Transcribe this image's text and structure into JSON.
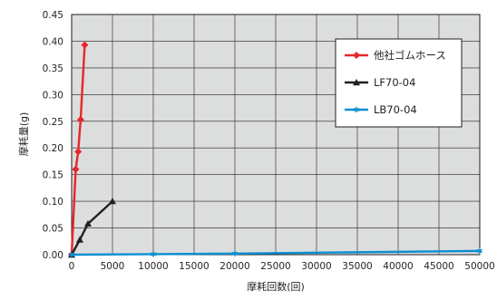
{
  "chart_data": {
    "type": "line",
    "title": "",
    "xlabel": "摩耗回数(回)",
    "ylabel": "摩耗量(g)",
    "xlim": [
      0,
      50000
    ],
    "ylim": [
      0,
      0.45
    ],
    "x_ticks": [
      "0",
      "5000",
      "10000",
      "15000",
      "20000",
      "25000",
      "30000",
      "35000",
      "40000",
      "45000",
      "50000"
    ],
    "y_ticks": [
      "0.00",
      "0.05",
      "0.10",
      "0.15",
      "0.20",
      "0.25",
      "0.30",
      "0.35",
      "0.40",
      "0.45"
    ],
    "x_tick_values": [
      0,
      5000,
      10000,
      15000,
      20000,
      25000,
      30000,
      35000,
      40000,
      45000,
      50000
    ],
    "y_tick_values": [
      0,
      0.05,
      0.1,
      0.15,
      0.2,
      0.25,
      0.3,
      0.35,
      0.4,
      0.45
    ],
    "grid": true,
    "plot_background": "#dcdddd",
    "legend_position": "top-right",
    "series": [
      {
        "name": "他社ゴムホース",
        "color": "#e8262b",
        "marker": "diamond",
        "points": [
          [
            0,
            0
          ],
          [
            500,
            0.16
          ],
          [
            800,
            0.193
          ],
          [
            1100,
            0.253
          ],
          [
            1600,
            0.393
          ]
        ]
      },
      {
        "name": "LF70-04",
        "color": "#231f20",
        "marker": "triangle",
        "points": [
          [
            0,
            0
          ],
          [
            1000,
            0.028
          ],
          [
            2000,
            0.058
          ],
          [
            5000,
            0.1
          ]
        ]
      },
      {
        "name": "LB70-04",
        "color": "#0a8fd1",
        "marker": "star",
        "points": [
          [
            0,
            0
          ],
          [
            10000,
            0.001
          ],
          [
            20000,
            0.002
          ],
          [
            50000,
            0.007
          ]
        ]
      }
    ]
  }
}
